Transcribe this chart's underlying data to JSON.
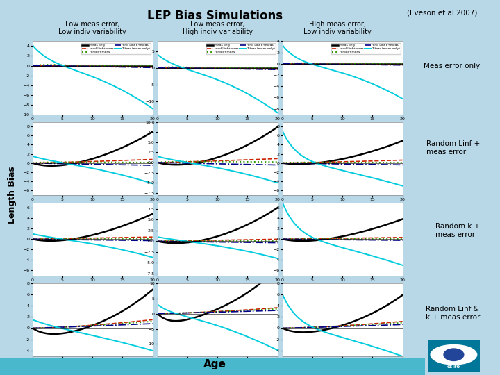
{
  "title": "LEP Bias Simulations",
  "citation": "(Eveson et al 2007)",
  "col_headers": [
    "Low meas error,\nLow indiv variability",
    "Low meas error,\nHigh indiv variability",
    "High meas error,\nLow indiv variability"
  ],
  "row_labels": [
    "Meas error only",
    "Random Linf +\nmeas error",
    "Random k +\nmeas error",
    "Random Linf &\nk + meas error"
  ],
  "ylabel": "Length Bias",
  "xlabel": "Age",
  "background_color": "#b8d8e8",
  "plot_bg": "#ffffff",
  "c_black": "#000000",
  "c_red": "#cc2200",
  "c_green": "#339900",
  "c_navy": "#000088",
  "c_cyan": "#00ccdd",
  "age_max": 20,
  "ylims_row0": [
    -10,
    5
  ],
  "ylims_row1": [
    -7,
    9
  ],
  "ylims_row2": [
    -7,
    7
  ],
  "ylims_row3": [
    -5,
    8
  ],
  "ylims_col1_row0": [
    -14,
    8
  ],
  "ylims_col1_row3": [
    -14,
    10
  ]
}
